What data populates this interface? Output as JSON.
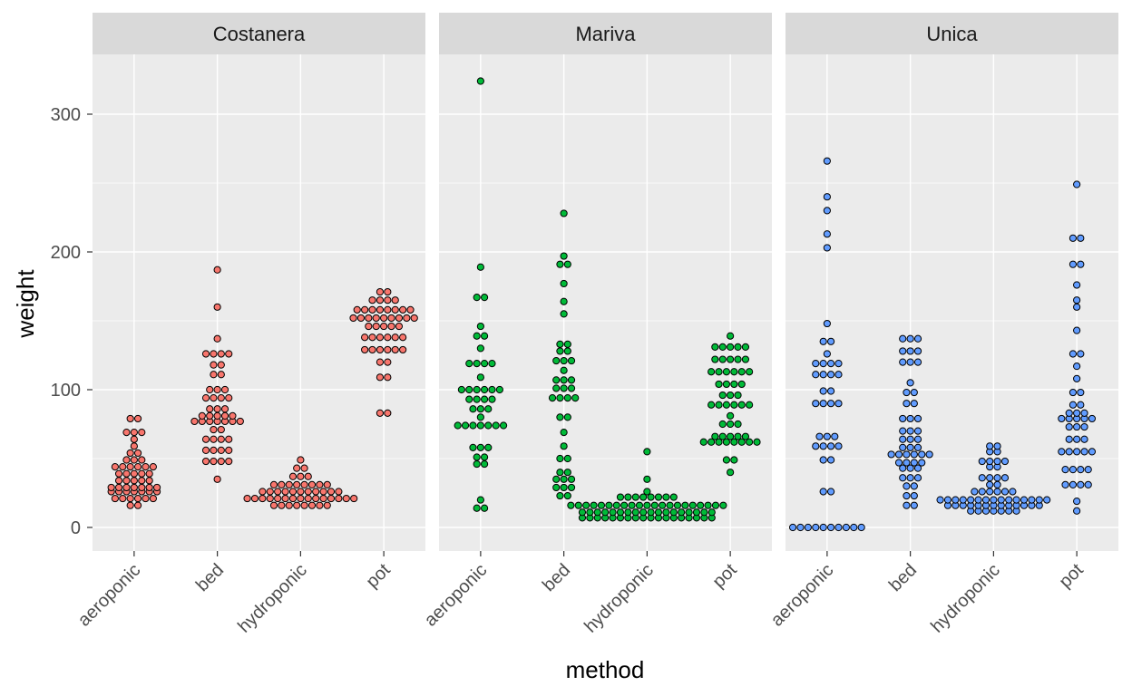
{
  "chart_data": {
    "type": "scatter",
    "subtype": "beeswarm-faceted",
    "xlabel": "method",
    "ylabel": "weight",
    "ylim": [
      -18,
      345
    ],
    "y_ticks": [
      0,
      100,
      200,
      300
    ],
    "categories": [
      "aeroponic",
      "bed",
      "hydroponic",
      "pot"
    ],
    "grid": true,
    "facets": [
      {
        "label": "Costanera",
        "color": "#f8766d",
        "groups": [
          {
            "category": "aeroponic",
            "values": [
              16,
              16,
              21,
              21,
              21,
              21,
              21,
              21,
              26,
              26,
              26,
              26,
              26,
              26,
              26,
              29,
              29,
              29,
              29,
              29,
              29,
              29,
              34,
              34,
              34,
              34,
              34,
              39,
              39,
              39,
              39,
              39,
              44,
              44,
              44,
              44,
              44,
              44,
              49,
              49,
              49,
              54,
              54,
              59,
              64,
              69,
              69,
              69,
              79,
              79
            ]
          },
          {
            "category": "bed",
            "values": [
              35,
              48,
              48,
              48,
              48,
              56,
              56,
              56,
              56,
              64,
              64,
              64,
              64,
              71,
              71,
              77,
              77,
              77,
              77,
              77,
              77,
              77,
              81,
              81,
              81,
              81,
              81,
              86,
              86,
              86,
              94,
              94,
              94,
              94,
              100,
              100,
              100,
              111,
              111,
              118,
              118,
              126,
              126,
              126,
              126,
              137,
              160,
              187
            ]
          },
          {
            "category": "hydroponic",
            "values": [
              16,
              16,
              16,
              16,
              16,
              16,
              16,
              16,
              21,
              21,
              21,
              21,
              21,
              21,
              21,
              21,
              21,
              21,
              21,
              21,
              21,
              21,
              21,
              26,
              26,
              26,
              26,
              26,
              26,
              26,
              26,
              26,
              26,
              26,
              31,
              31,
              31,
              31,
              31,
              31,
              31,
              31,
              37,
              37,
              37,
              43,
              43,
              49
            ]
          },
          {
            "category": "pot",
            "values": [
              83,
              83,
              109,
              109,
              120,
              120,
              129,
              129,
              129,
              129,
              129,
              129,
              138,
              138,
              138,
              138,
              138,
              138,
              146,
              146,
              146,
              146,
              146,
              152,
              152,
              152,
              152,
              152,
              152,
              152,
              152,
              152,
              158,
              158,
              158,
              158,
              158,
              158,
              158,
              158,
              165,
              165,
              165,
              165,
              171,
              171
            ]
          }
        ]
      },
      {
        "label": "Mariva",
        "color": "#00ba38",
        "groups": [
          {
            "category": "aeroponic",
            "values": [
              14,
              14,
              20,
              46,
              46,
              51,
              51,
              58,
              58,
              58,
              74,
              74,
              74,
              74,
              74,
              74,
              74,
              80,
              86,
              86,
              86,
              93,
              93,
              93,
              93,
              100,
              100,
              100,
              100,
              100,
              100,
              109,
              119,
              119,
              119,
              119,
              130,
              139,
              139,
              146,
              167,
              167,
              189,
              324
            ]
          },
          {
            "category": "bed",
            "values": [
              23,
              23,
              29,
              29,
              29,
              35,
              35,
              35,
              40,
              40,
              50,
              50,
              59,
              69,
              80,
              80,
              94,
              94,
              94,
              94,
              101,
              101,
              101,
              107,
              107,
              107,
              114,
              121,
              121,
              121,
              128,
              128,
              133,
              133,
              155,
              164,
              177,
              191,
              191,
              197,
              228
            ]
          },
          {
            "category": "hydroponic",
            "values": [
              7,
              7,
              7,
              7,
              7,
              7,
              7,
              7,
              7,
              7,
              7,
              7,
              7,
              7,
              7,
              7,
              7,
              7,
              11,
              11,
              11,
              11,
              11,
              11,
              11,
              11,
              11,
              11,
              11,
              11,
              11,
              11,
              11,
              11,
              11,
              11,
              16,
              16,
              16,
              16,
              16,
              16,
              16,
              16,
              16,
              16,
              16,
              16,
              16,
              16,
              16,
              16,
              16,
              16,
              16,
              16,
              16,
              22,
              22,
              22,
              22,
              22,
              22,
              22,
              22,
              26,
              35,
              55
            ]
          },
          {
            "category": "pot",
            "values": [
              40,
              49,
              49,
              62,
              62,
              62,
              62,
              62,
              62,
              62,
              62,
              66,
              66,
              66,
              66,
              66,
              75,
              75,
              75,
              81,
              89,
              89,
              89,
              89,
              89,
              89,
              96,
              96,
              96,
              104,
              104,
              104,
              104,
              113,
              113,
              113,
              113,
              113,
              113,
              122,
              122,
              122,
              122,
              122,
              131,
              131,
              131,
              131,
              131,
              139
            ]
          }
        ]
      },
      {
        "label": "Unica",
        "color": "#619cff",
        "groups": [
          {
            "category": "aeroponic",
            "values": [
              0,
              0,
              0,
              0,
              0,
              0,
              0,
              0,
              0,
              0,
              26,
              26,
              49,
              49,
              59,
              59,
              59,
              59,
              66,
              66,
              66,
              90,
              90,
              90,
              90,
              99,
              99,
              111,
              111,
              111,
              111,
              119,
              119,
              119,
              119,
              126,
              135,
              135,
              148,
              203,
              213,
              230,
              240,
              266
            ]
          },
          {
            "category": "bed",
            "values": [
              16,
              16,
              23,
              23,
              30,
              30,
              36,
              36,
              36,
              43,
              43,
              43,
              47,
              47,
              47,
              47,
              53,
              53,
              53,
              53,
              53,
              53,
              58,
              58,
              58,
              64,
              64,
              64,
              70,
              70,
              70,
              79,
              79,
              79,
              90,
              90,
              98,
              98,
              105,
              120,
              120,
              120,
              128,
              128,
              128,
              137,
              137,
              137
            ]
          },
          {
            "category": "hydroponic",
            "values": [
              12,
              12,
              12,
              12,
              12,
              12,
              12,
              16,
              16,
              16,
              16,
              16,
              16,
              16,
              16,
              16,
              16,
              16,
              16,
              16,
              20,
              20,
              20,
              20,
              20,
              20,
              20,
              20,
              20,
              20,
              20,
              20,
              20,
              20,
              20,
              26,
              26,
              26,
              26,
              26,
              26,
              31,
              31,
              36,
              36,
              36,
              36,
              44,
              44,
              48,
              48,
              48,
              48,
              55,
              55,
              59,
              59
            ]
          },
          {
            "category": "pot",
            "values": [
              12,
              19,
              31,
              31,
              31,
              31,
              42,
              42,
              42,
              42,
              55,
              55,
              55,
              55,
              55,
              64,
              64,
              64,
              73,
              73,
              73,
              79,
              79,
              79,
              79,
              79,
              83,
              83,
              83,
              89,
              89,
              98,
              98,
              108,
              117,
              126,
              126,
              143,
              160,
              165,
              176,
              191,
              191,
              210,
              210,
              249
            ]
          }
        ]
      }
    ]
  }
}
